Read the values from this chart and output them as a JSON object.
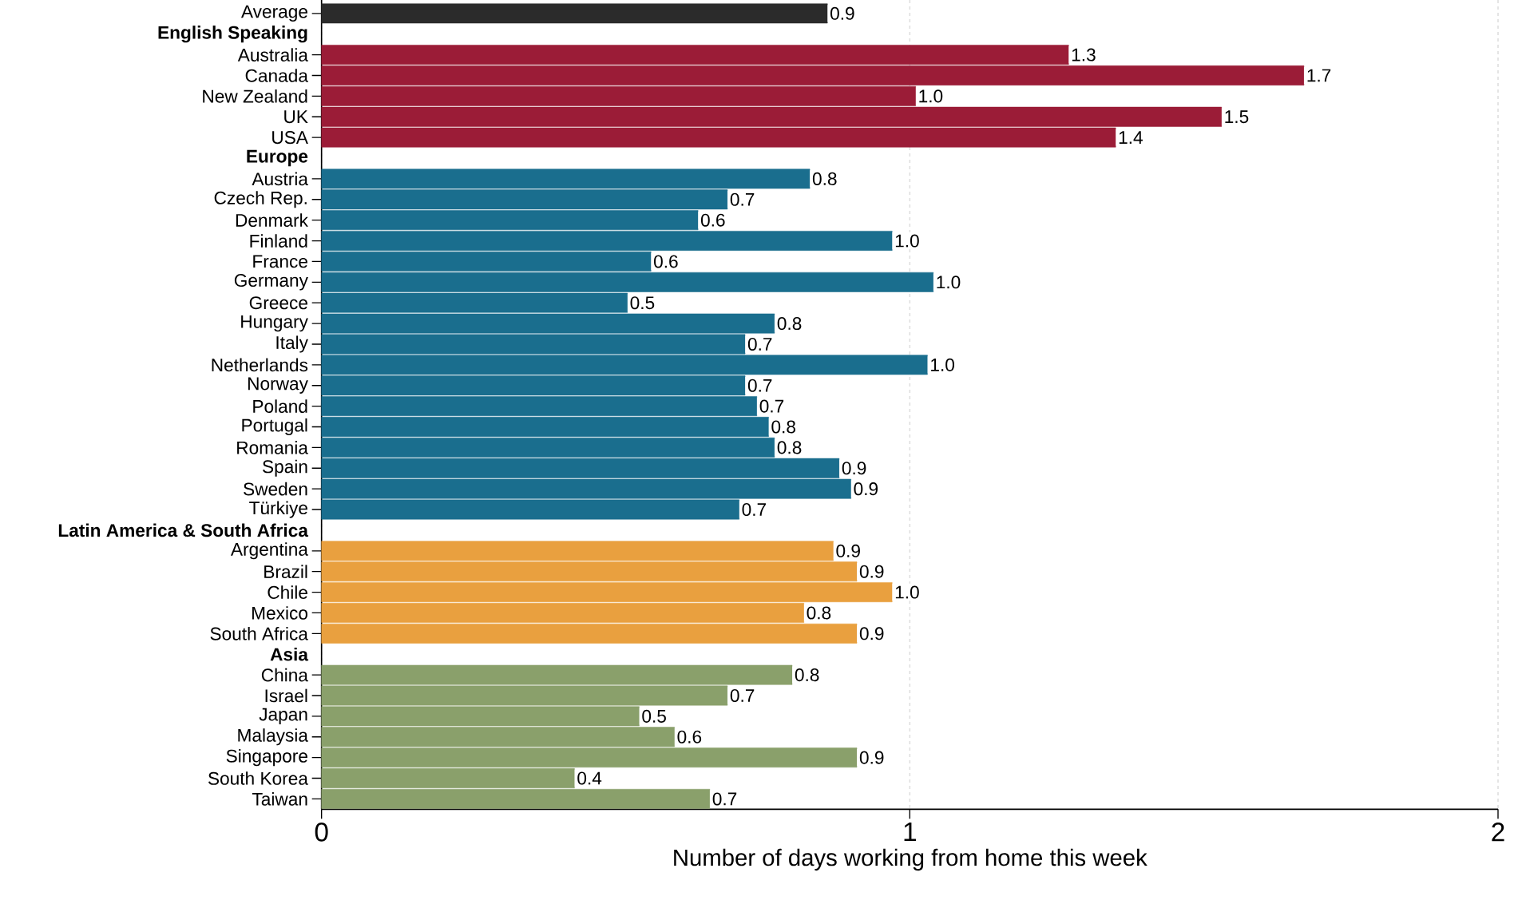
{
  "chart_data": {
    "type": "bar",
    "orientation": "horizontal",
    "xlabel": "Number of days working from home this week",
    "categories": [
      "Average",
      "English Speaking",
      "Australia",
      "Canada",
      "New Zealand",
      "UK",
      "USA",
      "Europe",
      "Austria",
      "Czech Rep.",
      "Denmark",
      "Finland",
      "France",
      "Germany",
      "Greece",
      "Hungary",
      "Italy",
      "Netherlands",
      "Norway",
      "Poland",
      "Portugal",
      "Romania",
      "Spain",
      "Sweden",
      "Türkiye",
      "Latin America & South Africa",
      "Argentina",
      "Brazil",
      "Chile",
      "Mexico",
      "South Africa",
      "Asia",
      "China",
      "Israel",
      "Japan",
      "Malaysia",
      "Singapore",
      "South Korea",
      "Taiwan"
    ],
    "values": [
      0.86,
      null,
      1.27,
      1.67,
      1.01,
      1.53,
      1.35,
      null,
      0.83,
      0.69,
      0.64,
      0.97,
      0.56,
      1.04,
      0.52,
      0.77,
      0.72,
      1.03,
      0.72,
      0.74,
      0.76,
      0.77,
      0.88,
      0.9,
      0.71,
      null,
      0.87,
      0.91,
      0.97,
      0.82,
      0.91,
      null,
      0.8,
      0.69,
      0.54,
      0.6,
      0.91,
      0.43,
      0.66
    ],
    "value_labels": [
      "0.9",
      null,
      "1.3",
      "1.7",
      "1.0",
      "1.5",
      "1.4",
      null,
      "0.8",
      "0.7",
      "0.6",
      "1.0",
      "0.6",
      "1.0",
      "0.5",
      "0.8",
      "0.7",
      "1.0",
      "0.7",
      "0.7",
      "0.8",
      "0.8",
      "0.9",
      "0.9",
      "0.7",
      null,
      "0.9",
      "0.9",
      "1.0",
      "0.8",
      "0.9",
      null,
      "0.8",
      "0.7",
      "0.5",
      "0.6",
      "0.9",
      "0.4",
      "0.7"
    ],
    "colors": [
      "#2b2b2b",
      null,
      "#9b1c37",
      "#9b1c37",
      "#9b1c37",
      "#9b1c37",
      "#9b1c37",
      null,
      "#1a6e8e",
      "#1a6e8e",
      "#1a6e8e",
      "#1a6e8e",
      "#1a6e8e",
      "#1a6e8e",
      "#1a6e8e",
      "#1a6e8e",
      "#1a6e8e",
      "#1a6e8e",
      "#1a6e8e",
      "#1a6e8e",
      "#1a6e8e",
      "#1a6e8e",
      "#1a6e8e",
      "#1a6e8e",
      "#1a6e8e",
      null,
      "#e9a03f",
      "#e9a03f",
      "#e9a03f",
      "#e9a03f",
      "#e9a03f",
      null,
      "#8aa06b",
      "#8aa06b",
      "#8aa06b",
      "#8aa06b",
      "#8aa06b",
      "#8aa06b",
      "#8aa06b"
    ],
    "xlim": [
      0,
      2
    ],
    "xticks": [
      0,
      1,
      2
    ],
    "grid": "x"
  }
}
